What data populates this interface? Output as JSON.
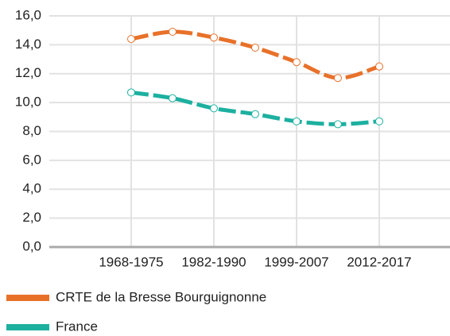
{
  "chart_data": {
    "type": "line",
    "categories": [
      "1968-1975",
      null,
      "1982-1990",
      null,
      "1999-2007",
      null,
      "2012-2017"
    ],
    "series": [
      {
        "name": "CRTE de la Bresse Bourguignonne",
        "color": "#e8712a",
        "values": [
          14.4,
          14.9,
          14.5,
          13.8,
          12.8,
          11.7,
          12.5
        ]
      },
      {
        "name": "France",
        "color": "#1cb0a0",
        "values": [
          10.7,
          10.3,
          9.6,
          9.2,
          8.7,
          8.5,
          8.7
        ]
      }
    ],
    "ylim": [
      0,
      16
    ],
    "yticks": [
      {
        "value": 0,
        "label": "0,0"
      },
      {
        "value": 2,
        "label": "2,0"
      },
      {
        "value": 4,
        "label": "4,0"
      },
      {
        "value": 6,
        "label": "6,0"
      },
      {
        "value": 8,
        "label": "8,0"
      },
      {
        "value": 10,
        "label": "10,0"
      },
      {
        "value": 12,
        "label": "12,0"
      },
      {
        "value": 14,
        "label": "14,0"
      },
      {
        "value": 16,
        "label": "16,0"
      }
    ],
    "grid": true
  }
}
